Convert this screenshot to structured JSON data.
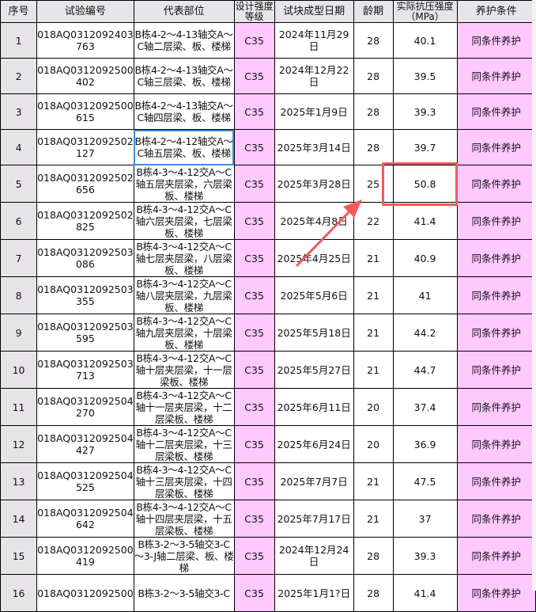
{
  "headers": [
    "序号",
    "试验编号",
    "代表部位",
    "设计强度等级",
    "试块成型日期",
    "龄期",
    "实际抗压强度（MPa）",
    "养护条件"
  ],
  "rows": [
    {
      "no": "1",
      "id": "018AQ0312092403 763",
      "loc": "B栋4-2～4-13轴交A～C轴二层梁、板、楼梯",
      "grade": "C35",
      "date": "2024年11月29日",
      "age": "28",
      "strength": "40.1",
      "curing": "同条件养护"
    },
    {
      "no": "2",
      "id": "018AQ0312092500 402",
      "loc": "B栋4-2～4-13轴交A～C轴三层梁、板、楼梯",
      "grade": "C35",
      "date": "2024年12月22日",
      "age": "28",
      "strength": "39.5",
      "curing": "同条件养护"
    },
    {
      "no": "3",
      "id": "018AQ0312092500 615",
      "loc": "B栋4-2～4-13轴交A～C轴四层梁、板、楼梯",
      "grade": "C35",
      "date": "2025年1月9日",
      "age": "28",
      "strength": "39.3",
      "curing": "同条件养护"
    },
    {
      "no": "4",
      "id": "018AQ0312092502 127",
      "loc": "B栋4-2～4-12轴交A～C轴五层梁、板、楼梯",
      "grade": "C35",
      "date": "2025年3月14日",
      "age": "28",
      "strength": "39.7",
      "curing": "同条件养护"
    },
    {
      "no": "5",
      "id": "018AQ0312092502 656",
      "loc": "B栋4-3～4-12交A～C轴五层夹层梁，六层梁板、楼梯",
      "grade": "C35",
      "date": "2025年3月28日",
      "age": "25",
      "strength": "50.8",
      "curing": "同条件养护"
    },
    {
      "no": "6",
      "id": "018AQ0312092502 825",
      "loc": "B栋4-3～4-12交A～C轴六层夹层梁，七层梁板、楼梯",
      "grade": "C35",
      "date": "2025年4月8日",
      "age": "22",
      "strength": "41.4",
      "curing": "同条件养护"
    },
    {
      "no": "7",
      "id": "018AQ0312092503 086",
      "loc": "B栋4-3～4-12交A～C轴七层夹层梁，八层梁板、楼梯",
      "grade": "C35",
      "date": "2025年4月25日",
      "age": "21",
      "strength": "40.9",
      "curing": "同条件养护"
    },
    {
      "no": "8",
      "id": "018AQ0312092503 355",
      "loc": "B栋4-3～4-12交A～C轴八层夹层梁，九层梁板、楼梯",
      "grade": "C35",
      "date": "2025年5月6日",
      "age": "21",
      "strength": "41",
      "curing": "同条件养护"
    },
    {
      "no": "9",
      "id": "018AQ0312092503 595",
      "loc": "B栋4-3～4-12交A～C轴九层夹层梁，十层梁板、楼梯",
      "grade": "C35",
      "date": "2025年5月18日",
      "age": "21",
      "strength": "44.2",
      "curing": "同条件养护"
    },
    {
      "no": "10",
      "id": "018AQ0312092503 713",
      "loc": "B栋4-3～4-12交A～C轴十层夹层梁，十一层梁板、楼梯",
      "grade": "C35",
      "date": "2025年5月27日",
      "age": "21",
      "strength": "44.7",
      "curing": "同条件养护"
    },
    {
      "no": "11",
      "id": "018AQ0312092504 270",
      "loc": "B栋4-3～4-12交A～C轴十一层夹层梁，十二层梁板、楼梯",
      "grade": "C35",
      "date": "2025年6月11日",
      "age": "20",
      "strength": "37.4",
      "curing": "同条件养护"
    },
    {
      "no": "12",
      "id": "018AQ0312092504 427",
      "loc": "B栋4-3～4-12交A～C轴十二层夹层梁，十三层梁板、楼梯",
      "grade": "C35",
      "date": "2025年6月24日",
      "age": "20",
      "strength": "36.9",
      "curing": "同条件养护"
    },
    {
      "no": "13",
      "id": "018AQ0312092504 525",
      "loc": "B栋4-3～4-12交A～C轴十三层夹层梁，十四层梁板、楼梯",
      "grade": "C35",
      "date": "2025年7月7日",
      "age": "21",
      "strength": "47.5",
      "curing": "同条件养护"
    },
    {
      "no": "14",
      "id": "018AQ0312092504 642",
      "loc": "B栋4-3～4-12交A～C轴十四层夹层梁，十五层梁板、楼梯",
      "grade": "C35",
      "date": "2025年7月17日",
      "age": "21",
      "strength": "37",
      "curing": "同条件养护"
    },
    {
      "no": "15",
      "id": "018AQ0312092500 419",
      "loc": "B栋3-2～3-5轴交3-C～3-J轴二层梁、板、楼梯",
      "grade": "C35",
      "date": "2024年12月24日",
      "age": "28",
      "strength": "39.3",
      "curing": "同条件养护"
    },
    {
      "no": "16",
      "id": "018AQ0312092500",
      "loc": "B栋3-2～3-5轴交3-C",
      "grade": "C35",
      "date": "2025年1月1?日",
      "age": "28",
      "strength": "41.4",
      "curing": "同条件养护"
    }
  ],
  "highlight": {
    "color": "#f05a5a",
    "row": 5,
    "column": "实际抗压强度（MPa）"
  },
  "colors": {
    "pink": "#ffc8ff",
    "header": "#e7e5e9",
    "selection": "#3d8fe0"
  }
}
